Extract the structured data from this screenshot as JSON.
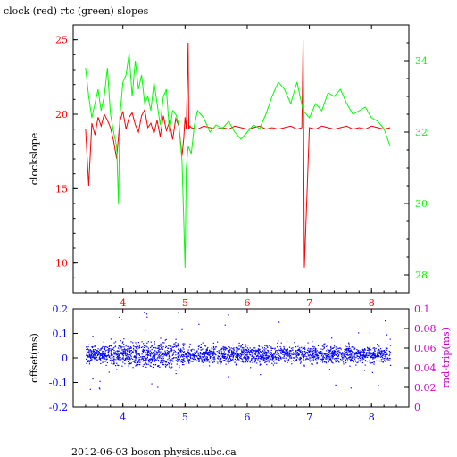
{
  "title": "clock (red) rtc (green) slopes",
  "footer": "2012-06-03  boson.physics.ubc.ca",
  "colors": {
    "red": "#ff0000",
    "green": "#00ff00",
    "blue": "#0000ff",
    "magenta": "#cc00cc",
    "axis": "#000000"
  },
  "chart_data": [
    {
      "type": "line",
      "title": "clock (red) rtc (green) slopes",
      "xlabel": "",
      "ylabel": "clockslope",
      "xlim": [
        3.2,
        8.6
      ],
      "ylim_left": [
        8,
        26
      ],
      "ylim_right": [
        27.5,
        35
      ],
      "x_ticks": [
        4,
        5,
        6,
        7,
        8
      ],
      "y_ticks_left": [
        10,
        15,
        20,
        25
      ],
      "y_ticks_right": [
        28,
        30,
        32,
        34
      ],
      "series": [
        {
          "name": "clock",
          "axis": "left",
          "color": "#ff0000",
          "x": [
            3.4,
            3.45,
            3.5,
            3.55,
            3.6,
            3.65,
            3.7,
            3.75,
            3.8,
            3.85,
            3.9,
            3.95,
            4.0,
            4.05,
            4.1,
            4.15,
            4.2,
            4.25,
            4.3,
            4.35,
            4.4,
            4.45,
            4.5,
            4.55,
            4.6,
            4.65,
            4.7,
            4.75,
            4.8,
            4.85,
            4.9,
            4.95,
            4.98,
            5.0,
            5.02,
            5.05,
            5.06,
            5.08,
            5.1,
            5.2,
            5.3,
            5.4,
            5.5,
            5.6,
            5.7,
            5.8,
            5.9,
            6.0,
            6.1,
            6.2,
            6.3,
            6.4,
            6.5,
            6.6,
            6.7,
            6.8,
            6.88,
            6.9,
            6.92,
            7.0,
            7.1,
            7.2,
            7.3,
            7.4,
            7.5,
            7.6,
            7.7,
            7.8,
            7.9,
            8.0,
            8.1,
            8.2,
            8.3
          ],
          "y": [
            19.0,
            15.2,
            19.4,
            18.6,
            19.8,
            19.2,
            20.0,
            19.6,
            19.1,
            18.2,
            17.0,
            19.5,
            20.2,
            19.0,
            19.8,
            20.1,
            19.3,
            18.8,
            19.9,
            20.3,
            19.1,
            19.4,
            18.7,
            19.6,
            18.5,
            19.9,
            18.9,
            19.5,
            18.3,
            19.7,
            19.2,
            17.2,
            18.4,
            19.8,
            19.0,
            24.8,
            19.0,
            19.2,
            19.1,
            19.0,
            19.2,
            19.1,
            19.0,
            19.1,
            19.0,
            19.2,
            19.1,
            19.0,
            19.1,
            19.2,
            19.0,
            19.1,
            19.0,
            19.1,
            19.2,
            19.0,
            19.1,
            25.0,
            9.7,
            19.1,
            19.0,
            19.2,
            19.1,
            19.0,
            19.1,
            19.2,
            19.0,
            19.1,
            19.0,
            19.2,
            19.1,
            19.0,
            19.1
          ]
        },
        {
          "name": "rtc",
          "axis": "right",
          "color": "#00ff00",
          "x": [
            3.4,
            3.45,
            3.5,
            3.55,
            3.6,
            3.65,
            3.7,
            3.75,
            3.8,
            3.85,
            3.9,
            3.93,
            3.95,
            4.0,
            4.05,
            4.1,
            4.15,
            4.2,
            4.25,
            4.3,
            4.35,
            4.4,
            4.45,
            4.5,
            4.55,
            4.6,
            4.65,
            4.7,
            4.75,
            4.8,
            4.85,
            4.9,
            4.95,
            4.98,
            5.0,
            5.02,
            5.05,
            5.1,
            5.15,
            5.2,
            5.3,
            5.4,
            5.5,
            5.6,
            5.7,
            5.8,
            5.9,
            6.0,
            6.1,
            6.2,
            6.3,
            6.4,
            6.5,
            6.6,
            6.7,
            6.8,
            6.9,
            7.0,
            7.1,
            7.2,
            7.3,
            7.4,
            7.5,
            7.6,
            7.7,
            7.8,
            7.9,
            8.0,
            8.1,
            8.2,
            8.3
          ],
          "y": [
            33.8,
            33.0,
            32.4,
            32.8,
            33.2,
            32.6,
            33.0,
            33.8,
            32.5,
            32.0,
            31.6,
            30.0,
            32.4,
            33.4,
            33.6,
            34.2,
            33.0,
            34.0,
            33.2,
            33.6,
            32.8,
            33.0,
            32.6,
            33.4,
            32.8,
            32.2,
            33.0,
            33.2,
            32.0,
            32.6,
            32.5,
            32.2,
            31.2,
            29.5,
            28.2,
            31.0,
            31.6,
            31.4,
            32.2,
            32.6,
            32.4,
            32.0,
            32.2,
            32.1,
            32.3,
            32.0,
            31.8,
            32.0,
            32.2,
            32.1,
            32.5,
            33.0,
            33.4,
            33.2,
            32.8,
            33.4,
            32.6,
            32.4,
            32.8,
            32.6,
            33.1,
            33.0,
            33.2,
            32.8,
            32.5,
            32.6,
            32.7,
            32.4,
            32.3,
            32.1,
            31.6
          ]
        }
      ]
    },
    {
      "type": "scatter",
      "xlabel": "",
      "ylabel": "offset(ms)",
      "ylabel_right": "rnd-trip(ms)",
      "xlim": [
        3.2,
        8.6
      ],
      "ylim_left": [
        -0.2,
        0.2
      ],
      "ylim_right": [
        0,
        0.1
      ],
      "x_ticks": [
        4,
        5,
        6,
        7,
        8
      ],
      "y_ticks_left": [
        -0.2,
        -0.1,
        0,
        0.1,
        0.2
      ],
      "y_ticks_right": [
        0,
        0.02,
        0.04,
        0.06,
        0.08,
        0.1
      ],
      "y_tick_labels_left": [
        "-0.2",
        "-0.1",
        "0",
        "0.1",
        "0.2"
      ],
      "y_tick_labels_right": [
        "0",
        "0.02",
        "0.04",
        "0.06",
        "0.08",
        "0.1"
      ],
      "series": [
        {
          "name": "offset",
          "axis": "left",
          "color": "#0000ff",
          "x_range": [
            3.4,
            8.3
          ],
          "typical_band": [
            -0.06,
            0.09
          ],
          "sparse_extremes": [
            -0.13,
            0.19
          ],
          "noisier_interval": [
            3.8,
            5.0
          ]
        }
      ]
    }
  ]
}
